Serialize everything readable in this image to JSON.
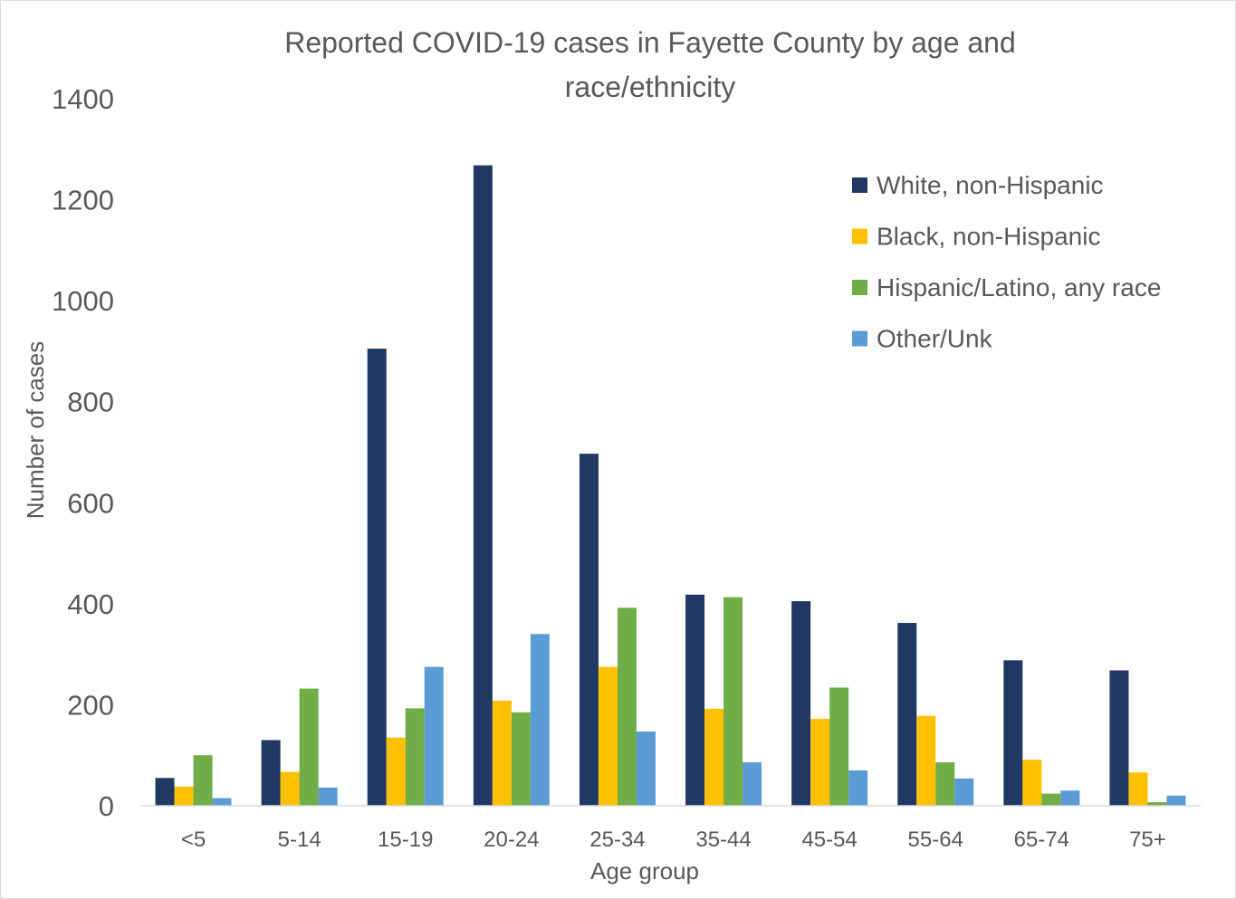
{
  "chart_data": {
    "type": "bar",
    "title": "Reported COVID-19 cases in Fayette County by age and race/ethnicity",
    "title_lines": [
      "Reported COVID-19 cases in Fayette County by age and",
      "race/ethnicity"
    ],
    "xlabel": "Age group",
    "ylabel": "Number of cases",
    "ylim": [
      0,
      1400
    ],
    "yticks": [
      0,
      200,
      400,
      600,
      800,
      1000,
      1200,
      1400
    ],
    "grid": false,
    "legend_position": "top-right",
    "categories": [
      "<5",
      "5-14",
      "15-19",
      "20-24",
      "25-34",
      "35-44",
      "45-54",
      "55-64",
      "65-74",
      "75+"
    ],
    "series": [
      {
        "name": "White, non-Hispanic",
        "color": "#1f3864",
        "values": [
          55,
          130,
          905,
          1268,
          697,
          418,
          405,
          362,
          288,
          268
        ]
      },
      {
        "name": "Black, non-Hispanic",
        "color": "#ffc000",
        "values": [
          38,
          67,
          135,
          208,
          275,
          192,
          172,
          178,
          91,
          66
        ]
      },
      {
        "name": "Hispanic/Latino, any race",
        "color": "#70ad47",
        "values": [
          100,
          232,
          193,
          185,
          392,
          413,
          234,
          86,
          24,
          7
        ]
      },
      {
        "name": "Other/Unk",
        "color": "#5b9bd5",
        "values": [
          15,
          36,
          275,
          340,
          147,
          86,
          70,
          54,
          30,
          20
        ]
      }
    ]
  }
}
